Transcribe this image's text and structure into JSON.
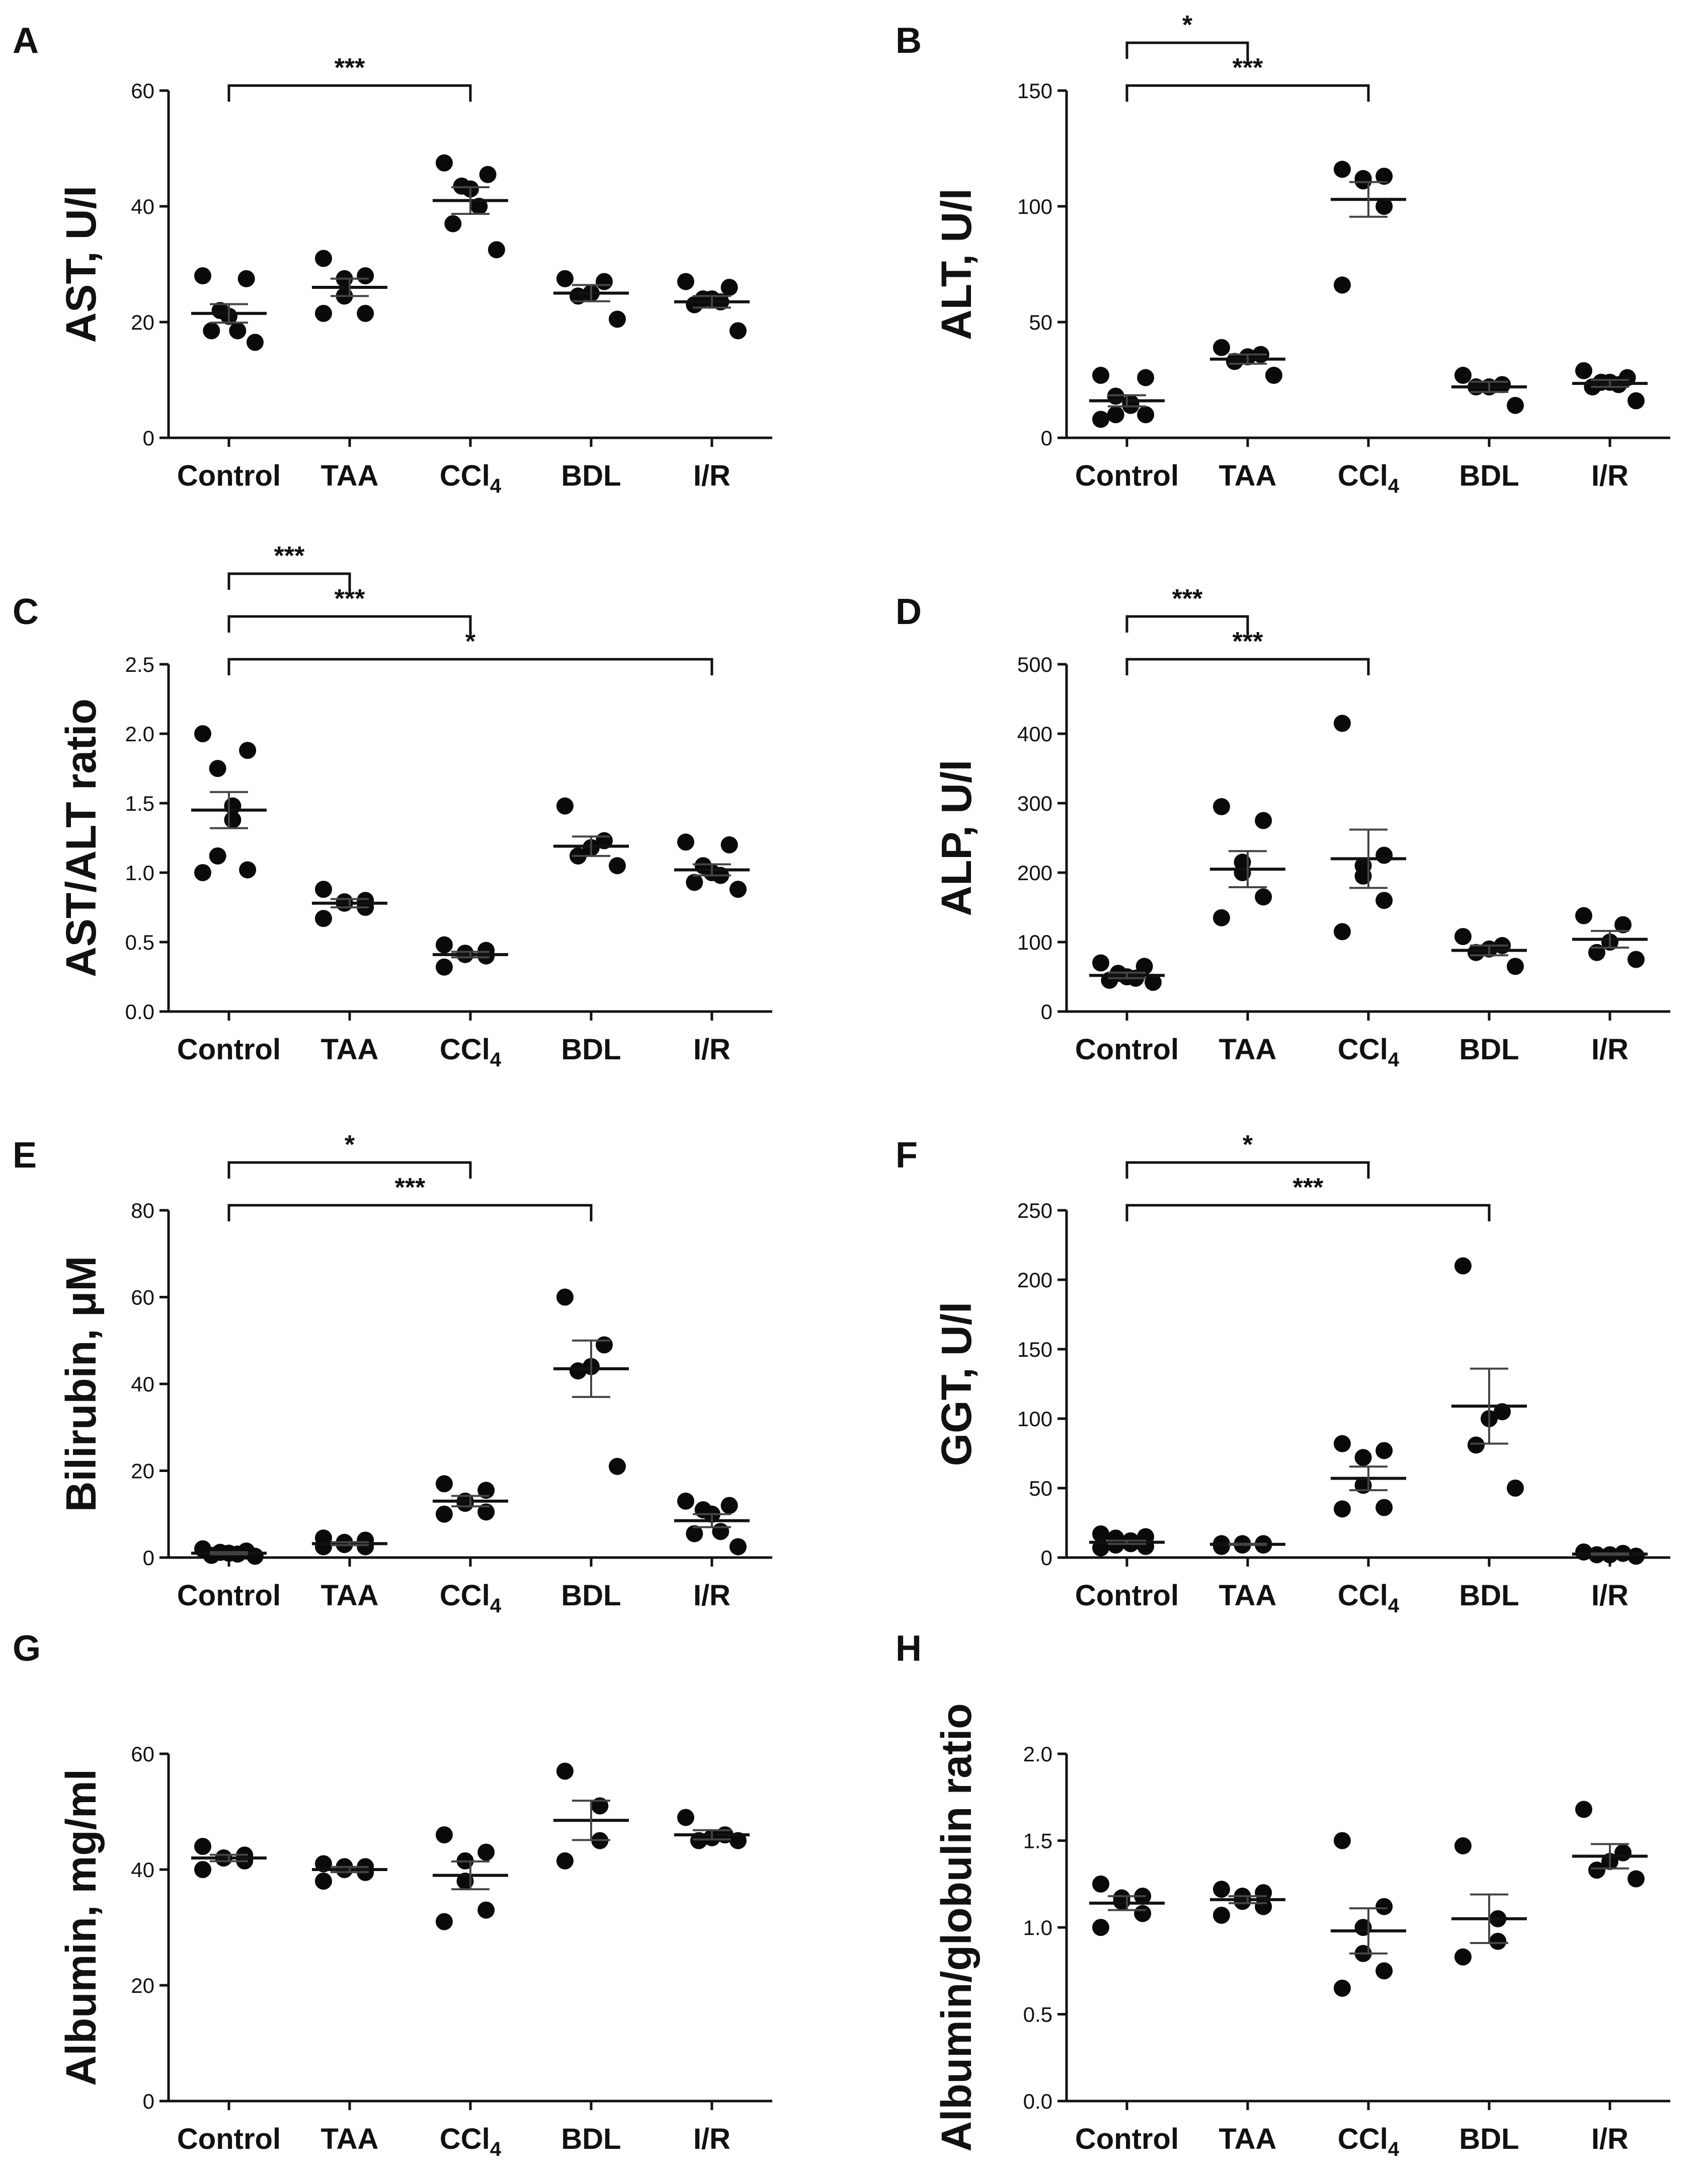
{
  "chart_data": [
    {
      "type": "scatter",
      "panel": "A",
      "ylabel": "AST, U/l",
      "categories": [
        "Control",
        "TAA",
        "CCl4",
        "BDL",
        "I/R"
      ],
      "ylim": [
        0,
        60
      ],
      "yticks": [
        "0",
        "20",
        "40",
        "60"
      ],
      "groups": [
        {
          "points": [
            28,
            27.5,
            22,
            21,
            18.5,
            18.5,
            16.5
          ],
          "mean": 21.5,
          "sem": 1.6
        },
        {
          "points": [
            31,
            28,
            27.5,
            24.5,
            21.5,
            21.5
          ],
          "mean": 26,
          "sem": 1.5
        },
        {
          "points": [
            47.5,
            45.5,
            43.5,
            43,
            40,
            37,
            32.5
          ],
          "mean": 41,
          "sem": 2.3
        },
        {
          "points": [
            27.5,
            27,
            25,
            24.5,
            20.5
          ],
          "mean": 25,
          "sem": 1.4
        },
        {
          "points": [
            27,
            26,
            24,
            24,
            23.5,
            23,
            18.5
          ],
          "mean": 23.5,
          "sem": 1.0
        }
      ],
      "comparisons": [
        {
          "from": "Control",
          "to": "CCl4",
          "label": "***"
        }
      ]
    },
    {
      "type": "scatter",
      "panel": "B",
      "ylabel": "ALT, U/l",
      "categories": [
        "Control",
        "TAA",
        "CCl4",
        "BDL",
        "I/R"
      ],
      "ylim": [
        0,
        150
      ],
      "yticks": [
        "0",
        "50",
        "100",
        "150"
      ],
      "groups": [
        {
          "points": [
            27,
            26,
            18,
            15,
            14,
            10,
            10,
            8
          ],
          "mean": 16,
          "sem": 2.4
        },
        {
          "points": [
            39,
            36,
            35,
            33,
            27
          ],
          "mean": 34,
          "sem": 2.0
        },
        {
          "points": [
            116,
            113,
            112,
            111,
            100,
            66
          ],
          "mean": 103,
          "sem": 7.5
        },
        {
          "points": [
            27,
            23,
            22,
            22,
            14
          ],
          "mean": 22,
          "sem": 2.2
        },
        {
          "points": [
            29,
            26,
            24,
            24,
            23,
            22,
            16
          ],
          "mean": 23.5,
          "sem": 1.5
        }
      ],
      "comparisons": [
        {
          "from": "Control",
          "to": "TAA",
          "label": "*"
        },
        {
          "from": "Control",
          "to": "CCl4",
          "label": "***"
        }
      ]
    },
    {
      "type": "scatter",
      "panel": "C",
      "ylabel": "AST/ALT ratio",
      "categories": [
        "Control",
        "TAA",
        "CCl4",
        "BDL",
        "I/R"
      ],
      "ylim": [
        0,
        2.5
      ],
      "yticks": [
        "0.0",
        "0.5",
        "1.0",
        "1.5",
        "2.0",
        "2.5"
      ],
      "groups": [
        {
          "points": [
            2.0,
            1.88,
            1.75,
            1.48,
            1.38,
            1.12,
            1.02,
            1.0
          ],
          "mean": 1.45,
          "sem": 0.13
        },
        {
          "points": [
            0.88,
            0.8,
            0.79,
            0.78,
            0.75,
            0.67
          ],
          "mean": 0.78,
          "sem": 0.03
        },
        {
          "points": [
            0.48,
            0.44,
            0.42,
            0.41,
            0.4,
            0.32
          ],
          "mean": 0.41,
          "sem": 0.02
        },
        {
          "points": [
            1.48,
            1.23,
            1.18,
            1.12,
            1.05
          ],
          "mean": 1.19,
          "sem": 0.07
        },
        {
          "points": [
            1.22,
            1.2,
            1.05,
            1.0,
            0.98,
            0.93,
            0.88
          ],
          "mean": 1.02,
          "sem": 0.04
        }
      ],
      "comparisons": [
        {
          "from": "Control",
          "to": "TAA",
          "label": "***"
        },
        {
          "from": "Control",
          "to": "CCl4",
          "label": "***"
        },
        {
          "from": "Control",
          "to": "I/R",
          "label": "*"
        }
      ]
    },
    {
      "type": "scatter",
      "panel": "D",
      "ylabel": "ALP, U/l",
      "categories": [
        "Control",
        "TAA",
        "CCl4",
        "BDL",
        "I/R"
      ],
      "ylim": [
        0,
        500
      ],
      "yticks": [
        "0",
        "100",
        "200",
        "300",
        "400",
        "500"
      ],
      "groups": [
        {
          "points": [
            70,
            65,
            55,
            50,
            48,
            45,
            42
          ],
          "mean": 52,
          "sem": 4
        },
        {
          "points": [
            295,
            275,
            215,
            200,
            165,
            135
          ],
          "mean": 205,
          "sem": 26
        },
        {
          "points": [
            415,
            225,
            210,
            195,
            160,
            115
          ],
          "mean": 220,
          "sem": 42
        },
        {
          "points": [
            108,
            95,
            90,
            85,
            65
          ],
          "mean": 88,
          "sem": 7
        },
        {
          "points": [
            138,
            125,
            100,
            85,
            75
          ],
          "mean": 104,
          "sem": 12
        }
      ],
      "comparisons": [
        {
          "from": "Control",
          "to": "TAA",
          "label": "***"
        },
        {
          "from": "Control",
          "to": "CCl4",
          "label": "***"
        }
      ]
    },
    {
      "type": "scatter",
      "panel": "E",
      "ylabel": "Bilirubin, μM",
      "categories": [
        "Control",
        "TAA",
        "CCl4",
        "BDL",
        "I/R"
      ],
      "ylim": [
        0,
        80
      ],
      "yticks": [
        "0",
        "20",
        "40",
        "60",
        "80"
      ],
      "groups": [
        {
          "points": [
            2,
            1.5,
            1.2,
            1,
            0.8,
            0.5,
            0.3
          ],
          "mean": 1.0,
          "sem": 0.25
        },
        {
          "points": [
            4.5,
            4,
            3.5,
            3,
            2.5,
            2.5
          ],
          "mean": 3.2,
          "sem": 0.35
        },
        {
          "points": [
            17,
            15.5,
            13,
            12.5,
            10.5,
            10
          ],
          "mean": 13,
          "sem": 1.2
        },
        {
          "points": [
            60,
            49,
            44,
            43,
            21
          ],
          "mean": 43.5,
          "sem": 6.5
        },
        {
          "points": [
            13,
            12,
            11,
            10,
            6,
            5.5,
            2.5
          ],
          "mean": 8.5,
          "sem": 1.5
        }
      ],
      "comparisons": [
        {
          "from": "Control",
          "to": "CCl4",
          "label": "*"
        },
        {
          "from": "Control",
          "to": "BDL",
          "label": "***"
        }
      ]
    },
    {
      "type": "scatter",
      "panel": "F",
      "ylabel": "GGT, U/l",
      "categories": [
        "Control",
        "TAA",
        "CCl4",
        "BDL",
        "I/R"
      ],
      "ylim": [
        0,
        250
      ],
      "yticks": [
        "0",
        "50",
        "100",
        "150",
        "200",
        "250"
      ],
      "groups": [
        {
          "points": [
            17,
            15,
            14,
            12,
            10,
            9,
            8,
            7
          ],
          "mean": 11,
          "sem": 1.2
        },
        {
          "points": [
            10,
            10,
            10,
            9,
            9,
            8
          ],
          "mean": 9.5,
          "sem": 0.4
        },
        {
          "points": [
            82,
            77,
            72,
            52,
            36,
            35
          ],
          "mean": 57,
          "sem": 8.5
        },
        {
          "points": [
            210,
            105,
            100,
            81,
            50
          ],
          "mean": 109,
          "sem": 27
        },
        {
          "points": [
            4,
            3,
            2,
            2,
            1
          ],
          "mean": 2.5,
          "sem": 0.5
        }
      ],
      "comparisons": [
        {
          "from": "Control",
          "to": "CCl4",
          "label": "*"
        },
        {
          "from": "Control",
          "to": "BDL",
          "label": "***"
        }
      ]
    },
    {
      "type": "scatter",
      "panel": "G",
      "ylabel": "Albumin, mg/ml",
      "categories": [
        "Control",
        "TAA",
        "CCl4",
        "BDL",
        "I/R"
      ],
      "ylim": [
        0,
        60
      ],
      "yticks": [
        "0",
        "20",
        "40",
        "60"
      ],
      "groups": [
        {
          "points": [
            44,
            42.5,
            42,
            42,
            41.5,
            40
          ],
          "mean": 42,
          "sem": 0.55
        },
        {
          "points": [
            41,
            40.5,
            40.5,
            40,
            39.5,
            38
          ],
          "mean": 40,
          "sem": 0.45
        },
        {
          "points": [
            46,
            43,
            41.5,
            38,
            33,
            31
          ],
          "mean": 39,
          "sem": 2.4
        },
        {
          "points": [
            57,
            51,
            45,
            41.5
          ],
          "mean": 48.5,
          "sem": 3.4
        },
        {
          "points": [
            49,
            46,
            45.5,
            45,
            45
          ],
          "mean": 46,
          "sem": 0.8
        }
      ],
      "comparisons": []
    },
    {
      "type": "scatter",
      "panel": "H",
      "ylabel": "Albumin/globulin ratio",
      "categories": [
        "Control",
        "TAA",
        "CCl4",
        "BDL",
        "I/R"
      ],
      "ylim": [
        0,
        2.0
      ],
      "yticks": [
        "0.0",
        "0.5",
        "1.0",
        "1.5",
        "2.0"
      ],
      "groups": [
        {
          "points": [
            1.25,
            1.18,
            1.17,
            1.15,
            1.08,
            1.0
          ],
          "mean": 1.14,
          "sem": 0.04
        },
        {
          "points": [
            1.22,
            1.2,
            1.18,
            1.15,
            1.12,
            1.07
          ],
          "mean": 1.16,
          "sem": 0.02
        },
        {
          "points": [
            1.5,
            1.12,
            1.0,
            0.85,
            0.75,
            0.65
          ],
          "mean": 0.98,
          "sem": 0.13
        },
        {
          "points": [
            1.47,
            1.05,
            0.92,
            0.83
          ],
          "mean": 1.05,
          "sem": 0.14
        },
        {
          "points": [
            1.68,
            1.43,
            1.38,
            1.33,
            1.28
          ],
          "mean": 1.41,
          "sem": 0.07
        }
      ],
      "comparisons": []
    }
  ]
}
